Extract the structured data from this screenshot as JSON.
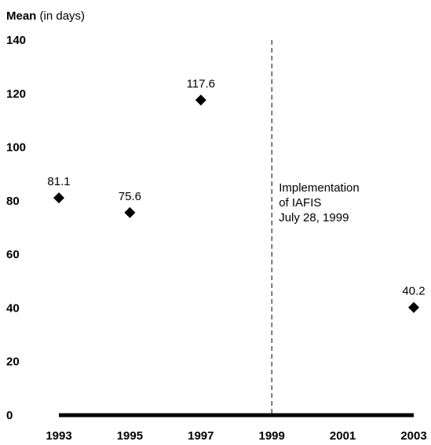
{
  "chart_data": {
    "type": "scatter",
    "ylabel": {
      "bold": "Mean",
      "normal": " (in days)"
    },
    "xlabel": "",
    "x_ticks": [
      "1993",
      "1995",
      "1997",
      "1999",
      "2001",
      "2003"
    ],
    "y_ticks": [
      "0",
      "20",
      "40",
      "60",
      "80",
      "100",
      "120",
      "140"
    ],
    "xlim": [
      1993,
      2003
    ],
    "ylim": [
      0,
      140
    ],
    "grid": false,
    "marker": "diamond",
    "marker_color": "#000000",
    "points": [
      {
        "x": 1993,
        "y": 81.1,
        "label": "81.1"
      },
      {
        "x": 1995,
        "y": 75.6,
        "label": "75.6"
      },
      {
        "x": 1997,
        "y": 117.6,
        "label": "117.6"
      },
      {
        "x": 2003,
        "y": 40.2,
        "label": "40.2"
      }
    ],
    "reference_line": {
      "x": 1999.0,
      "style": "dashed",
      "annotation": [
        "Implementation",
        "of IAFIS",
        "July 28, 1999"
      ]
    }
  }
}
